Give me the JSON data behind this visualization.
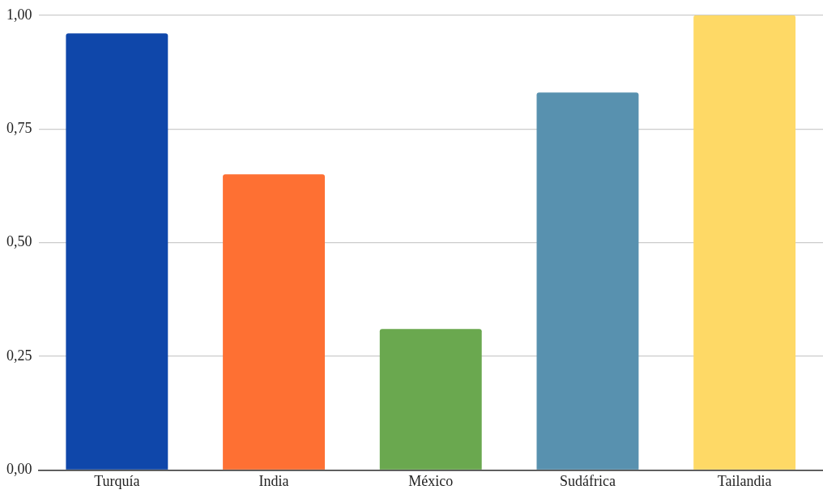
{
  "chart_data": {
    "type": "bar",
    "categories": [
      "Turquía",
      "India",
      "México",
      "Sudáfrica",
      "Tailandia"
    ],
    "values": [
      0.96,
      0.65,
      0.31,
      0.83,
      1.0
    ],
    "colors": [
      "#0f47aa",
      "#fe7033",
      "#6aa84f",
      "#5891af",
      "#fed966"
    ],
    "ylim": [
      0,
      1
    ],
    "yticks": [
      {
        "value": 0,
        "label": "0,00"
      },
      {
        "value": 0.25,
        "label": "0,25"
      },
      {
        "value": 0.5,
        "label": "0,50"
      },
      {
        "value": 0.75,
        "label": "0,75"
      },
      {
        "value": 1,
        "label": "1,00"
      }
    ],
    "grid": "y",
    "legend": false
  }
}
